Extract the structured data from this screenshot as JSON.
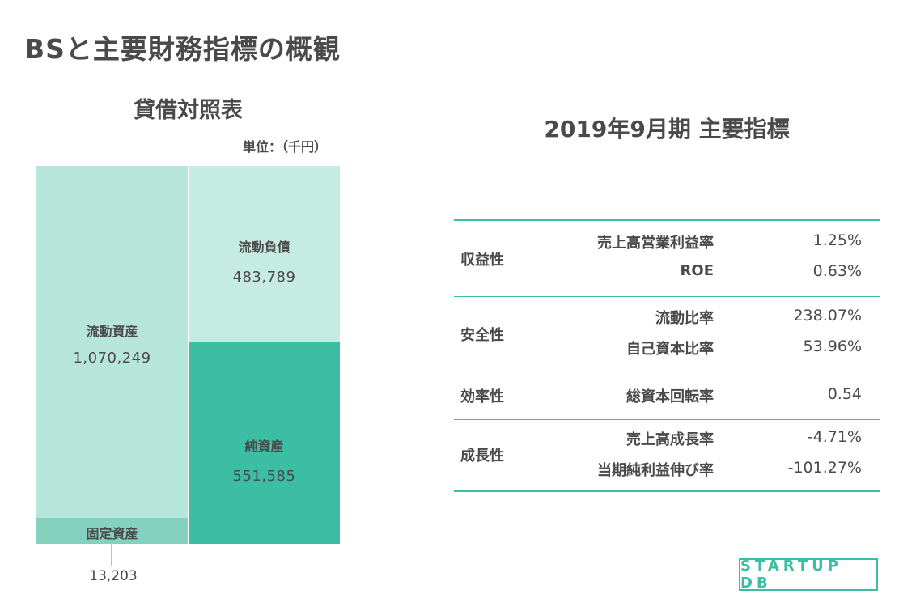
{
  "page_title": "BSと主要財務指標の概観",
  "logo_text": "STARTUP DB",
  "chart_data": [
    {
      "type": "bar",
      "title": "貸借対照表",
      "unit": "単位：（千円）",
      "assets": [
        {
          "label": "流動資産",
          "value": 1070249,
          "display": "1,070,249",
          "color": "#b5e6d9"
        },
        {
          "label": "固定資産",
          "value": 13203,
          "display": "13,203",
          "color": "#84d1bf"
        }
      ],
      "liabilities_equity": [
        {
          "label": "流動負債",
          "value": 483789,
          "display": "483,789",
          "color": "#c6ebe2"
        },
        {
          "label": "純資産",
          "value": 551585,
          "display": "551,585",
          "color": "#3dbda3"
        }
      ]
    },
    {
      "type": "table",
      "title": "2019年9月期 主要指標",
      "groups": [
        {
          "category": "収益性",
          "items": [
            {
              "name": "売上高営業利益率",
              "value": "1.25%"
            },
            {
              "name": "ROE",
              "value": "0.63%"
            }
          ]
        },
        {
          "category": "安全性",
          "items": [
            {
              "name": "流動比率",
              "value": "238.07%"
            },
            {
              "name": "自己資本比率",
              "value": "53.96%"
            }
          ]
        },
        {
          "category": "効率性",
          "items": [
            {
              "name": "総資本回転率",
              "value": "0.54"
            }
          ]
        },
        {
          "category": "成長性",
          "items": [
            {
              "name": "売上高成長率",
              "value": "-4.71%"
            },
            {
              "name": "当期純利益伸び率",
              "value": "-101.27%"
            }
          ]
        }
      ]
    }
  ],
  "colors": {
    "accent": "#3dbda3",
    "text": "#4a4a4a"
  }
}
